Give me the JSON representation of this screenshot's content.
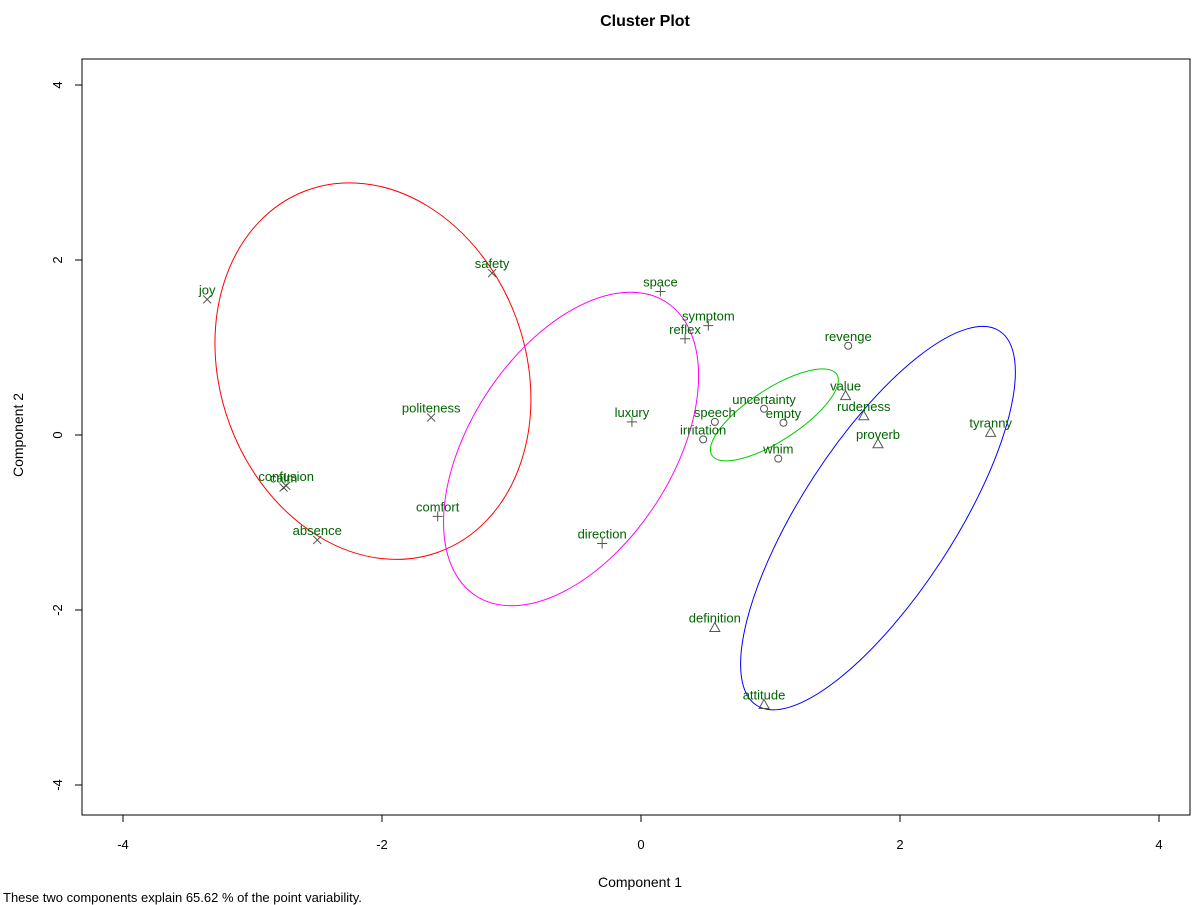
{
  "chart_data": {
    "type": "scatter",
    "title": "Cluster Plot",
    "xlabel": "Component 1",
    "ylabel": "Component 2",
    "xlim": [
      -4.3,
      4.3
    ],
    "ylim": [
      -4.4,
      4.4
    ],
    "xticks": [
      -4,
      -2,
      0,
      2,
      4
    ],
    "yticks": [
      -4,
      -2,
      0,
      2,
      4
    ],
    "caption": "These two components explain 65.62 % of the point variability.",
    "clusters": [
      {
        "id": 1,
        "marker": "x",
        "ellipse_color": "#ff0000",
        "ellipse": {
          "cx": -2.07,
          "cy": 0.73,
          "rx": 1.18,
          "ry": 2.2,
          "angle": -20
        },
        "points": [
          {
            "label": "joy",
            "x": -3.35,
            "y": 1.55
          },
          {
            "label": "safety",
            "x": -1.15,
            "y": 1.85
          },
          {
            "label": "politeness",
            "x": -1.62,
            "y": 0.2
          },
          {
            "label": "confusion",
            "x": -2.74,
            "y": -0.58
          },
          {
            "label": "calm",
            "x": -2.76,
            "y": -0.6
          },
          {
            "label": "absence",
            "x": -2.5,
            "y": -1.2
          }
        ]
      },
      {
        "id": 2,
        "marker": "+",
        "ellipse_color": "#ff00ff",
        "ellipse": {
          "cx": -0.54,
          "cy": -0.16,
          "rx": 0.78,
          "ry": 2.0,
          "angle": 33
        },
        "points": [
          {
            "label": "space",
            "x": 0.15,
            "y": 1.64
          },
          {
            "label": "symptom",
            "x": 0.52,
            "y": 1.25
          },
          {
            "label": "reflex",
            "x": 0.34,
            "y": 1.1
          },
          {
            "label": "luxury",
            "x": -0.07,
            "y": 0.15
          },
          {
            "label": "comfort",
            "x": -1.57,
            "y": -0.93
          },
          {
            "label": "direction",
            "x": -0.3,
            "y": -1.24
          }
        ]
      },
      {
        "id": 3,
        "marker": "o",
        "ellipse_color": "#00cc00",
        "ellipse": {
          "cx": 1.03,
          "cy": 0.23,
          "rx": 0.2,
          "ry": 0.85,
          "angle": 57
        },
        "points": [
          {
            "label": "revenge",
            "x": 1.6,
            "y": 1.02
          },
          {
            "label": "uncertainty",
            "x": 0.95,
            "y": 0.3
          },
          {
            "label": "empty",
            "x": 1.1,
            "y": 0.14
          },
          {
            "label": "speech",
            "x": 0.57,
            "y": 0.15
          },
          {
            "label": "irritation",
            "x": 0.48,
            "y": -0.05
          },
          {
            "label": "whim",
            "x": 1.06,
            "y": -0.27
          }
        ]
      },
      {
        "id": 4,
        "marker": "triangle",
        "ellipse_color": "#0000ff",
        "ellipse": {
          "cx": 1.83,
          "cy": -0.95,
          "rx": 0.59,
          "ry": 2.55,
          "angle": 33
        },
        "points": [
          {
            "label": "value",
            "x": 1.58,
            "y": 0.45
          },
          {
            "label": "rudeness",
            "x": 1.72,
            "y": 0.22
          },
          {
            "label": "proverb",
            "x": 1.83,
            "y": -0.1
          },
          {
            "label": "tyranny",
            "x": 2.7,
            "y": 0.03
          },
          {
            "label": "definition",
            "x": 0.57,
            "y": -2.2
          },
          {
            "label": "attitude",
            "x": 0.95,
            "y": -3.08
          }
        ]
      }
    ]
  }
}
